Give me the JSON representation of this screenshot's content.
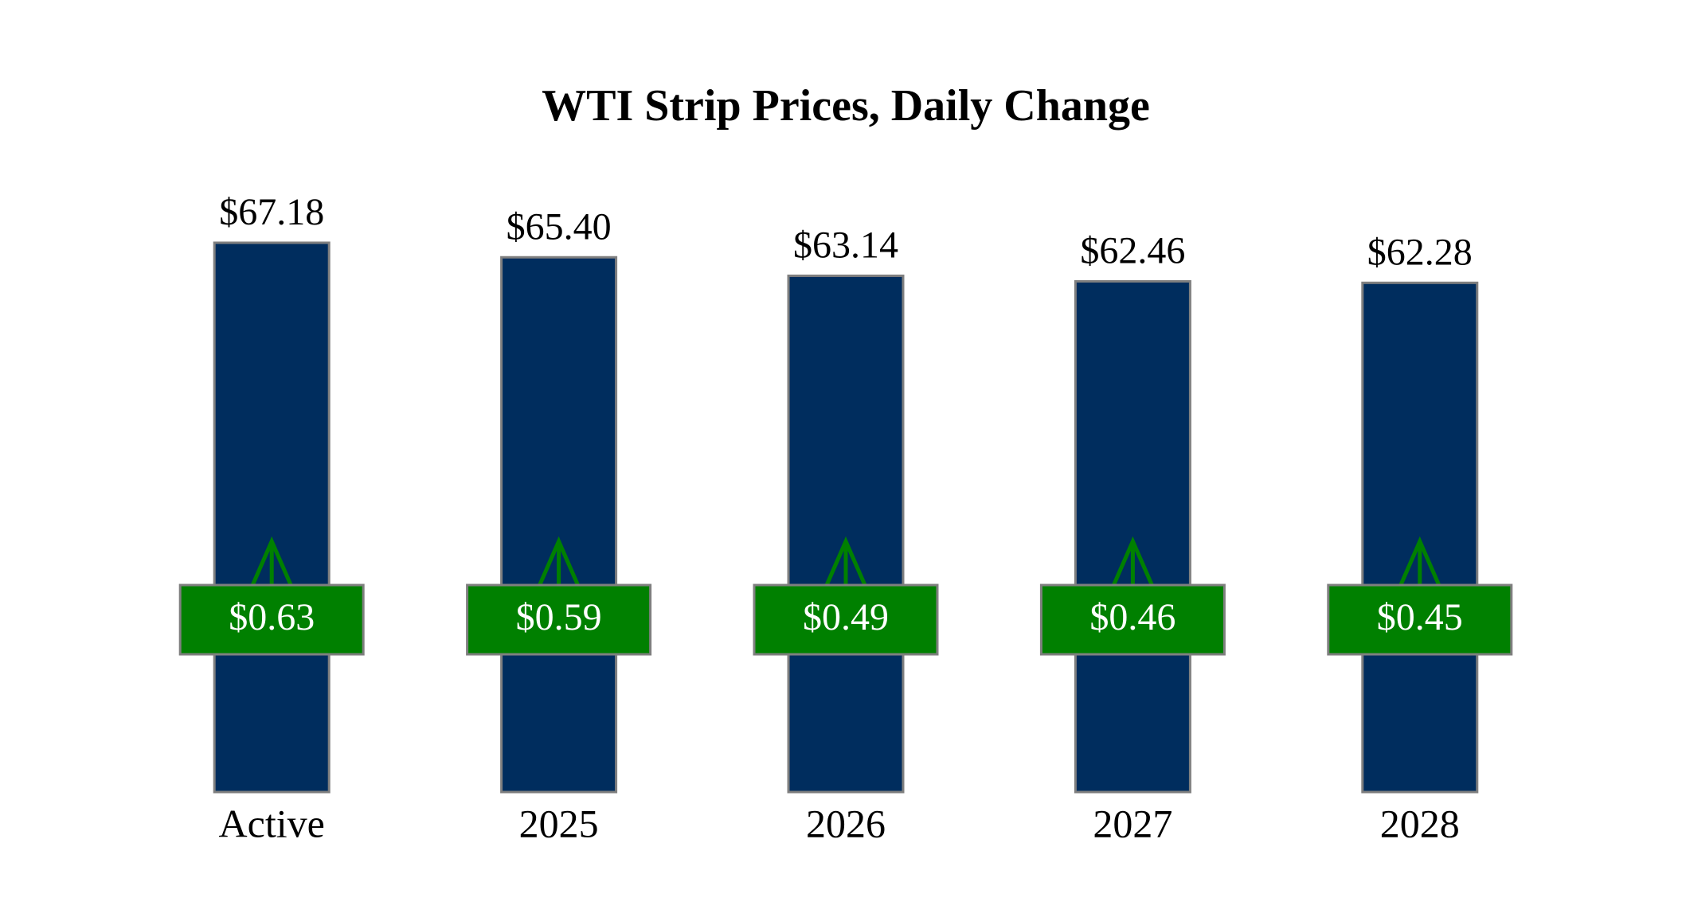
{
  "chart_data": {
    "type": "bar",
    "title": "WTI Strip Prices, Daily Change",
    "categories": [
      "Active",
      "2025",
      "2026",
      "2027",
      "2028"
    ],
    "values": [
      67.18,
      65.4,
      63.14,
      62.46,
      62.28
    ],
    "value_labels": [
      "$67.18",
      "$65.40",
      "$63.14",
      "$62.46",
      "$62.28"
    ],
    "changes": [
      0.63,
      0.59,
      0.49,
      0.46,
      0.45
    ],
    "change_labels": [
      "$0.63",
      "$0.59",
      "$0.49",
      "$0.46",
      "$0.45"
    ],
    "color": "#002d5e",
    "change_color": "#008000",
    "ylim": [
      0,
      70
    ]
  }
}
